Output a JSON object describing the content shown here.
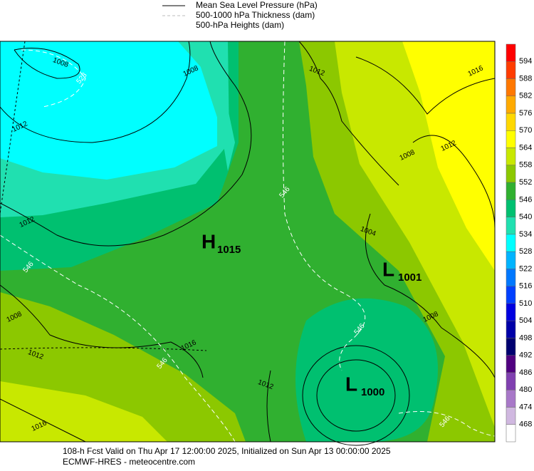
{
  "legend": [
    {
      "label": "Mean Sea Level Pressure (hPa)"
    },
    {
      "label": "500-1000 hPa Thickness (dam)"
    },
    {
      "label": "500-hPa Heights (dam)"
    }
  ],
  "colorbar": {
    "labels": [
      594,
      588,
      582,
      576,
      570,
      564,
      558,
      552,
      546,
      540,
      534,
      528,
      522,
      516,
      510,
      504,
      498,
      492,
      486,
      480,
      474,
      468
    ],
    "colors": [
      "#ff0000",
      "#ff3c00",
      "#ff7800",
      "#ffaa00",
      "#ffd800",
      "#ffff00",
      "#c8e800",
      "#8cc800",
      "#30b030",
      "#00c070",
      "#20e0b0",
      "#00ffff",
      "#00b4ff",
      "#0078ff",
      "#0040ff",
      "#0000e0",
      "#0000a8",
      "#000070",
      "#500080",
      "#8040b0",
      "#a878c8",
      "#d0b8e0",
      "#ffffff"
    ]
  },
  "centers": [
    {
      "symbol": "H",
      "value": 1015
    },
    {
      "symbol": "L",
      "value": 1001
    },
    {
      "symbol": "L",
      "value": 1000
    }
  ],
  "isobar_labels": [
    1008,
    1008,
    1012,
    1012,
    1012,
    1008,
    1012,
    1016,
    1016,
    1012,
    1008,
    1012,
    1004,
    1008,
    1016
  ],
  "thickness_labels": [
    528,
    546,
    546,
    546,
    546,
    546
  ],
  "footer": [
    "108-h Fcst Valid on Thu Apr 17 12:00:00 2025, Initialized on Sun Apr 13 00:00:00 2025",
    "ECMWF-HRES  - meteocentre.com"
  ]
}
